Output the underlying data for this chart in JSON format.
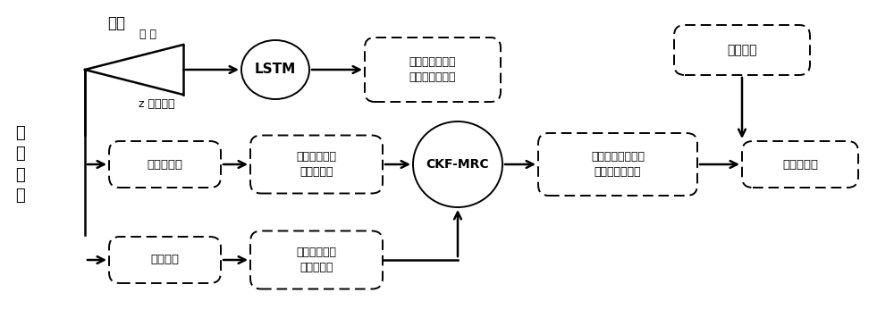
{
  "bg_color": "#ffffff",
  "text_color": "#000000",
  "left_label": "训\n练\n阶\n段",
  "top_label": "训练",
  "top_branch_upper": "时 间",
  "top_branch_lower": "z 轴角速率",
  "lstm_label": "LSTM",
  "box1_label": "偏振光相对于太\n阳子午线方位角",
  "box2_label": "偏振光导航",
  "box3_label": "相对于太阳子\n午线方位角",
  "ckf_label": "CKF-MRC",
  "box4_label": "较高精度相对于太\n阳子午线方位角",
  "box5_label": "绝对航向角",
  "box6_label": "惯性导航",
  "box7_label": "相对于太阳子\n午线方位角",
  "box8_label": "天文公式"
}
